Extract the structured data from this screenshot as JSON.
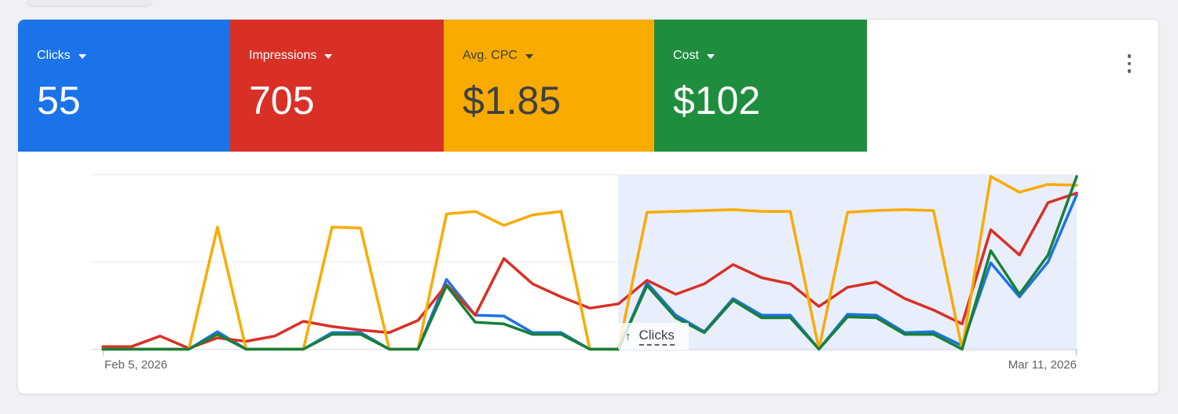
{
  "metrics": [
    {
      "key": "clicks",
      "label": "Clicks",
      "value": "55",
      "bg": "#1a73e8",
      "fg": "#ffffff"
    },
    {
      "key": "impressions",
      "label": "Impressions",
      "value": "705",
      "bg": "#d93025",
      "fg": "#ffffff"
    },
    {
      "key": "avg-cpc",
      "label": "Avg. CPC",
      "value": "$1.85",
      "bg": "#f9ab00",
      "fg": "#3c4043"
    },
    {
      "key": "cost",
      "label": "Cost",
      "value": "$102",
      "bg": "#1e8e3e",
      "fg": "#ffffff"
    }
  ],
  "menu": {
    "name": "overflow-menu"
  },
  "tooltip": {
    "arrow": "↑",
    "label": "Clicks"
  },
  "chart_data": {
    "type": "line",
    "x": [
      "Feb 5",
      "Feb 6",
      "Feb 7",
      "Feb 8",
      "Feb 9",
      "Feb 10",
      "Feb 11",
      "Feb 12",
      "Feb 13",
      "Feb 14",
      "Feb 15",
      "Feb 16",
      "Feb 17",
      "Feb 18",
      "Feb 19",
      "Feb 20",
      "Feb 21",
      "Feb 22",
      "Feb 23",
      "Feb 24",
      "Feb 25",
      "Feb 26",
      "Feb 27",
      "Feb 28",
      "Mar 1",
      "Mar 2",
      "Mar 3",
      "Mar 4",
      "Mar 5",
      "Mar 6",
      "Mar 7",
      "Mar 8",
      "Mar 9",
      "Mar 10",
      "Mar 11"
    ],
    "x_axis_labels": [
      "Feb 5, 2026",
      "Mar 11, 2026"
    ],
    "values_unit": "percent_of_plot_height",
    "ylim": [
      0,
      100
    ],
    "grid": "3 horizontal gridlines, no y tick labels",
    "series": [
      {
        "key": "clicks",
        "name": "Clicks",
        "color": "#1a73e8",
        "values": [
          0,
          0,
          0,
          0,
          10,
          0,
          0,
          0,
          9.5,
          9.5,
          0,
          0,
          40,
          19.5,
          19,
          9.5,
          9.5,
          0,
          0,
          38,
          19.5,
          10,
          29,
          19.5,
          19.5,
          0,
          20,
          19.5,
          9.5,
          10,
          2,
          49.5,
          30,
          50,
          88.5
        ]
      },
      {
        "key": "impressions",
        "name": "Impressions",
        "color": "#d93025",
        "values": [
          1.5,
          1.5,
          7.5,
          0.5,
          6.5,
          4.5,
          7.5,
          16,
          13,
          11,
          9.5,
          16.5,
          37,
          19.5,
          52,
          37.5,
          30,
          23.5,
          26,
          39.5,
          31.5,
          37.5,
          48.5,
          41,
          37.5,
          24.5,
          35.5,
          38.5,
          29,
          22.5,
          14.5,
          68.5,
          54,
          84,
          89.5
        ]
      },
      {
        "key": "avg-cpc",
        "name": "Avg. CPC",
        "color": "#f9ab00",
        "values": [
          0,
          0,
          0,
          0,
          70,
          0,
          0,
          0,
          70,
          69.5,
          0,
          0,
          77.5,
          79,
          71,
          77,
          79,
          0,
          0,
          78.5,
          79,
          79.5,
          80,
          79,
          79,
          0,
          78.5,
          79.5,
          80,
          79.5,
          0,
          99,
          90,
          94.5,
          94
        ]
      },
      {
        "key": "cost",
        "name": "Cost",
        "color": "#188038",
        "values": [
          0,
          0,
          0,
          0,
          8.5,
          0,
          0,
          0,
          8.5,
          8.5,
          0,
          0,
          36.5,
          15.5,
          14.5,
          8.5,
          8.5,
          0,
          0,
          36.5,
          18,
          9.5,
          28,
          18,
          18,
          0,
          18.5,
          18,
          8.5,
          8.5,
          0,
          56.5,
          31.5,
          54,
          99
        ]
      }
    ],
    "highlight_region": {
      "from": "Feb 23",
      "to": "Mar 11",
      "color": "#e8eefb"
    },
    "tooltip": {
      "arrow": "↑",
      "label": "Clicks"
    }
  }
}
